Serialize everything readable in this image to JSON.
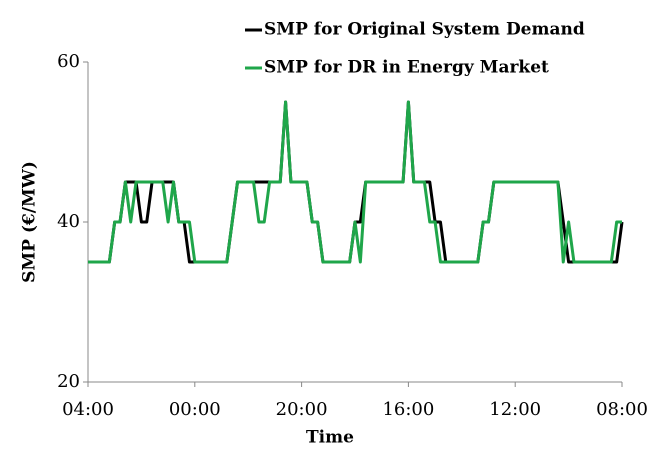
{
  "chart_data": {
    "type": "line",
    "xlabel": "Time",
    "ylabel": "SMP (€/MW)",
    "x": [
      0,
      1,
      2,
      3,
      4,
      5,
      6,
      7,
      8,
      9,
      10,
      11,
      12,
      13,
      14,
      15,
      16,
      17,
      18,
      19,
      20,
      21,
      22,
      23,
      24,
      25,
      26,
      27,
      28,
      29,
      30,
      31,
      32,
      33,
      34,
      35,
      36,
      37,
      38,
      39,
      40,
      41,
      42,
      43,
      44,
      45,
      46,
      47,
      48,
      49,
      50,
      51,
      52,
      53,
      54,
      55,
      56,
      57,
      58,
      59,
      60,
      61,
      62,
      63,
      64,
      65,
      66,
      67,
      68,
      69,
      70,
      71,
      72,
      73,
      74,
      75,
      76,
      77,
      78,
      79,
      80,
      81,
      82,
      83,
      84,
      85,
      86,
      87,
      88,
      89,
      90,
      91,
      92,
      93,
      94,
      95,
      96,
      97,
      98,
      99,
      100
    ],
    "series": [
      {
        "name": "SMP for Original System Demand",
        "color": "#000000",
        "values": [
          35,
          35,
          35,
          35,
          35,
          40,
          40,
          45,
          45,
          45,
          40,
          40,
          45,
          45,
          45,
          45,
          45,
          40,
          40,
          35,
          35,
          35,
          35,
          35,
          35,
          35,
          35,
          40,
          45,
          45,
          45,
          45,
          45,
          45,
          45,
          45,
          45,
          55,
          45,
          45,
          45,
          45,
          40,
          40,
          35,
          35,
          35,
          35,
          35,
          35,
          40,
          40,
          45,
          45,
          45,
          45,
          45,
          45,
          45,
          45,
          55,
          45,
          45,
          45,
          45,
          40,
          40,
          35,
          35,
          35,
          35,
          35,
          35,
          35,
          40,
          40,
          45,
          45,
          45,
          45,
          45,
          45,
          45,
          45,
          45,
          45,
          45,
          45,
          45,
          40,
          35,
          35,
          35,
          35,
          35,
          35,
          35,
          35,
          35,
          35,
          40
        ]
      },
      {
        "name": "SMP for DR in Energy Market",
        "color": "#1fa64a",
        "values": [
          35,
          35,
          35,
          35,
          35,
          40,
          40,
          45,
          40,
          45,
          45,
          45,
          45,
          45,
          45,
          40,
          45,
          40,
          40,
          40,
          35,
          35,
          35,
          35,
          35,
          35,
          35,
          40,
          45,
          45,
          45,
          45,
          40,
          40,
          45,
          45,
          45,
          55,
          45,
          45,
          45,
          45,
          40,
          40,
          35,
          35,
          35,
          35,
          35,
          35,
          40,
          35,
          45,
          45,
          45,
          45,
          45,
          45,
          45,
          45,
          55,
          45,
          45,
          45,
          40,
          40,
          35,
          35,
          35,
          35,
          35,
          35,
          35,
          35,
          40,
          40,
          45,
          45,
          45,
          45,
          45,
          45,
          45,
          45,
          45,
          45,
          45,
          45,
          45,
          35,
          40,
          35,
          35,
          35,
          35,
          35,
          35,
          35,
          35,
          40,
          40
        ]
      }
    ],
    "xlim": [
      0,
      100
    ],
    "xticks": [
      {
        "value": 0,
        "label": "04:00"
      },
      {
        "value": 20,
        "label": "00:00"
      },
      {
        "value": 40,
        "label": "20:00"
      },
      {
        "value": 60,
        "label": "16:00"
      },
      {
        "value": 80,
        "label": "12:00"
      },
      {
        "value": 100,
        "label": "08:00"
      }
    ],
    "ylim": [
      20,
      60
    ],
    "yticks": [
      20,
      40,
      60
    ],
    "legend": "top-right"
  }
}
